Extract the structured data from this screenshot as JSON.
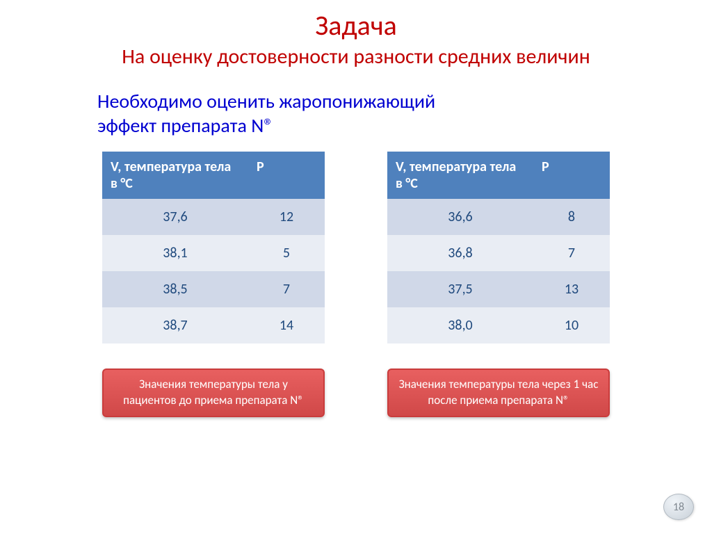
{
  "title": "Задача",
  "subtitle": "На оценку достоверности разности средних величин",
  "task_line1": "Необходимо оценить жаропонижающий",
  "task_line2": "эффект препарата N®",
  "table_headers": {
    "col1": "V,  температура тела  в °С",
    "col2": "P"
  },
  "left_table": {
    "rows": [
      {
        "v": "37,6",
        "p": "12"
      },
      {
        "v": "38,1",
        "p": "5"
      },
      {
        "v": "38,5",
        "p": "7"
      },
      {
        "v": "38,7",
        "p": "14"
      }
    ]
  },
  "right_table": {
    "rows": [
      {
        "v": "36,6",
        "p": "8"
      },
      {
        "v": "36,8",
        "p": "7"
      },
      {
        "v": "37,5",
        "p": "13"
      },
      {
        "v": "38,0",
        "p": "10"
      }
    ]
  },
  "left_caption": "Значения температуры тела у пациентов до приема препарата N®",
  "right_caption": "Значения температуры тела через 1 час после приема препарата N®",
  "page_number": "18",
  "colors": {
    "title": "#c00000",
    "task_text": "#0000d0",
    "table_header_bg": "#4f81bd",
    "table_header_fg": "#ffffff",
    "row_even_bg": "#d0d8e8",
    "row_odd_bg": "#e9edf4",
    "cell_fg": "#1f497d",
    "caption_bg_top": "#e86060",
    "caption_bg_bottom": "#d04848",
    "caption_border": "#c93c3c",
    "caption_fg": "#ffffff",
    "pagenum_fg": "#808890"
  },
  "fonts": {
    "title_size": 40,
    "subtitle_size": 30,
    "task_size": 28,
    "table_size": 20,
    "caption_size": 17,
    "pagenum_size": 16
  }
}
